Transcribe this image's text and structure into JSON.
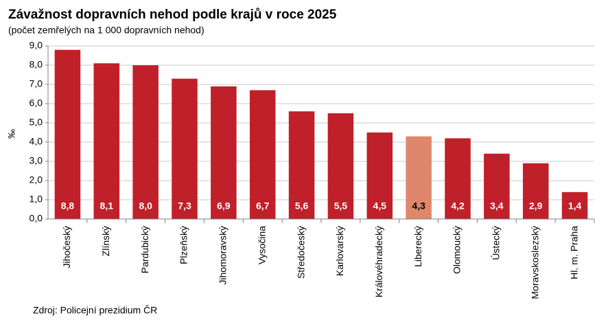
{
  "chart_data": {
    "type": "bar",
    "title": "Závažnost dopravních nehod podle krajů v roce 2025",
    "subtitle": "(počet zemřelých na 1 000 dopravních nehod)",
    "y_label": "‰",
    "source": "Zdroj: Policejní prezidium ČR",
    "categories": [
      "Jihočeský",
      "Zlínský",
      "Pardubický",
      "Plzeňský",
      "Jihomoravský",
      "Vysočina",
      "Středočeský",
      "Karlovarský",
      "Královéhradecký",
      "Liberecký",
      "Olomoucký",
      "Ústecký",
      "Moravskoslezský",
      "Hl. m. Praha"
    ],
    "values": [
      8.8,
      8.1,
      8.0,
      7.3,
      6.9,
      6.7,
      5.6,
      5.5,
      4.5,
      4.3,
      4.2,
      3.4,
      2.9,
      1.4
    ],
    "value_labels": [
      "8,8",
      "8,1",
      "8,0",
      "7,3",
      "6,9",
      "6,7",
      "5,6",
      "5,5",
      "4,5",
      "4,3",
      "4,2",
      "3,4",
      "2,9",
      "1,4"
    ],
    "colors": [
      "#c0202a",
      "#c0202a",
      "#c0202a",
      "#c0202a",
      "#c0202a",
      "#c0202a",
      "#c0202a",
      "#c0202a",
      "#c0202a",
      "#df876d",
      "#c0202a",
      "#c0202a",
      "#c0202a",
      "#c0202a"
    ],
    "ylim": [
      0,
      9
    ],
    "yticks": [
      {
        "value": 0,
        "label": "0,0"
      },
      {
        "value": 1,
        "label": "1,0"
      },
      {
        "value": 2,
        "label": "2,0"
      },
      {
        "value": 3,
        "label": "3,0"
      },
      {
        "value": 4,
        "label": "4,0"
      },
      {
        "value": 5,
        "label": "5,0"
      },
      {
        "value": 6,
        "label": "6,0"
      },
      {
        "value": 7,
        "label": "7,0"
      },
      {
        "value": 8,
        "label": "8,0"
      },
      {
        "value": 9,
        "label": "9,0"
      }
    ],
    "grid": true
  }
}
